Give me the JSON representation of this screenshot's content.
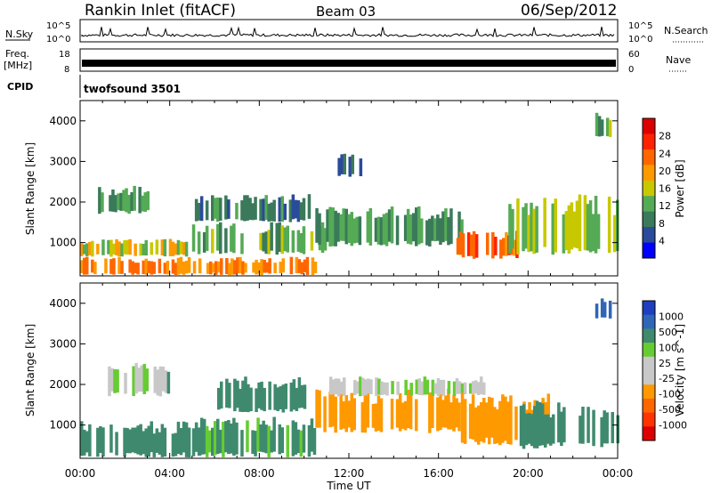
{
  "header": {
    "station": "Rankin Inlet (fitACF)",
    "beam": "Beam 03",
    "date": "06/Sep/2012"
  },
  "top_panels": {
    "nsky_label": "N.Sky",
    "nsky_ticks": [
      "10^5",
      "10^0"
    ],
    "nsearch_label": "N.Search",
    "nsearch_ticks": [
      "10^5",
      "10^0"
    ],
    "freq_label_line1": "Freq.",
    "freq_label_line2": "[MHz]",
    "freq_ticks": [
      "18",
      "8"
    ],
    "nave_label": "Nave",
    "nave_ticks": [
      "60",
      "0"
    ],
    "cpid_label": "CPID",
    "cpid_value": "twofsound 3501"
  },
  "colors": {
    "power_scale": [
      "#0000ff",
      "#2a4a9a",
      "#3a7a5a",
      "#55aa55",
      "#c8c800",
      "#ff9900",
      "#ff6600",
      "#ff2200",
      "#dd0000"
    ],
    "velocity_scale": [
      "#1f3fbf",
      "#2f66b8",
      "#3f8a6e",
      "#66cc33",
      "#c8c8c8",
      "#c8c8c8",
      "#ff9900",
      "#ff6600",
      "#ff3300",
      "#dd0000"
    ]
  },
  "chart_data": [
    {
      "type": "heatmap",
      "title": "",
      "xlabel": "Time UT",
      "ylabel": "Slant Range [km]",
      "x_ticks": [
        "00:00",
        "04:00",
        "08:00",
        "12:00",
        "16:00",
        "20:00",
        "00:00"
      ],
      "y_ticks": [
        1000,
        2000,
        3000,
        4000
      ],
      "ylim": [
        180,
        4500
      ],
      "colorbar_label": "Power [dB]",
      "colorbar_ticks": [
        4,
        8,
        12,
        16,
        20,
        24,
        28
      ],
      "colorbar_range": [
        0,
        32
      ],
      "regions": [
        {
          "t0": 0.0,
          "t1": 10.5,
          "r0": 200,
          "r1": 650,
          "value": 24
        },
        {
          "t0": 0.0,
          "t1": 5.0,
          "r0": 650,
          "r1": 1100,
          "value": 18
        },
        {
          "t0": 0.8,
          "t1": 3.0,
          "r0": 1700,
          "r1": 2400,
          "value": 12
        },
        {
          "t0": 5.0,
          "t1": 11.0,
          "r0": 700,
          "r1": 1500,
          "value": 14
        },
        {
          "t0": 5.0,
          "t1": 10.5,
          "r0": 1500,
          "r1": 2200,
          "value": 10
        },
        {
          "t0": 10.5,
          "t1": 17.0,
          "r0": 900,
          "r1": 1900,
          "value": 12
        },
        {
          "t0": 16.8,
          "t1": 19.5,
          "r0": 600,
          "r1": 1300,
          "value": 26
        },
        {
          "t0": 19.0,
          "t1": 24.0,
          "r0": 700,
          "r1": 2200,
          "value": 16
        },
        {
          "t0": 11.5,
          "t1": 12.5,
          "r0": 2600,
          "r1": 3200,
          "value": 8
        },
        {
          "t0": 23.0,
          "t1": 23.7,
          "r0": 3600,
          "r1": 4200,
          "value": 14
        }
      ]
    },
    {
      "type": "heatmap",
      "title": "",
      "xlabel": "Time UT",
      "ylabel": "Slant Range [km]",
      "x_ticks": [
        "00:00",
        "04:00",
        "08:00",
        "12:00",
        "16:00",
        "20:00",
        "00:00"
      ],
      "y_ticks": [
        1000,
        2000,
        3000,
        4000
      ],
      "ylim": [
        180,
        4500
      ],
      "colorbar_label": "Velocity [m s^-1]",
      "colorbar_ticks": [
        1000,
        500,
        100,
        25,
        -25,
        -100,
        -500,
        -1000
      ],
      "regions": [
        {
          "t0": 0.0,
          "t1": 5.5,
          "r0": 200,
          "r1": 1100,
          "value": 300
        },
        {
          "t0": 1.0,
          "t1": 4.0,
          "r0": 1700,
          "r1": 2600,
          "value": 20
        },
        {
          "t0": 5.0,
          "t1": 10.5,
          "r0": 200,
          "r1": 1200,
          "value": 150
        },
        {
          "t0": 6.0,
          "t1": 10.0,
          "r0": 1300,
          "r1": 2200,
          "value": 400
        },
        {
          "t0": 10.5,
          "t1": 17.0,
          "r0": 800,
          "r1": 1900,
          "value": -300
        },
        {
          "t0": 11.0,
          "t1": 18.0,
          "r0": 1700,
          "r1": 2200,
          "value": 10
        },
        {
          "t0": 17.0,
          "t1": 21.0,
          "r0": 500,
          "r1": 1800,
          "value": -400
        },
        {
          "t0": 19.5,
          "t1": 24.0,
          "r0": 400,
          "r1": 1600,
          "value": 200
        },
        {
          "t0": 23.0,
          "t1": 23.7,
          "r0": 3600,
          "r1": 4200,
          "value": 600
        }
      ]
    }
  ]
}
